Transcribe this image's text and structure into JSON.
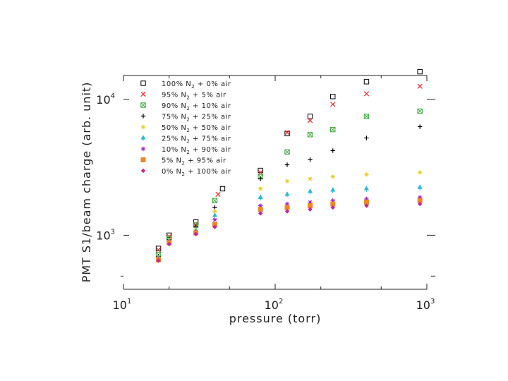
{
  "chart_data": {
    "type": "scatter",
    "xlabel": "pressure (torr)",
    "ylabel": "PMT S1/beam charge (arb. unit)",
    "xscale": "log",
    "yscale": "log",
    "xlim": [
      10,
      1000
    ],
    "ylim": [
      400,
      15000
    ],
    "x_ticks": [
      {
        "base": "10",
        "exp": "1",
        "value": 10
      },
      {
        "base": "10",
        "exp": "2",
        "value": 100
      },
      {
        "base": "10",
        "exp": "3",
        "value": 1000
      }
    ],
    "y_ticks": [
      {
        "base": "10",
        "exp": "3",
        "value": 1000
      },
      {
        "base": "10",
        "exp": "4",
        "value": 10000
      }
    ],
    "legend_position": "top-left",
    "series": [
      {
        "name": "100% N2 + 0% air",
        "legend_parts": [
          "100% N",
          "2",
          " + 0% air"
        ],
        "marker": "square-open",
        "color": "#000000",
        "points": [
          [
            17,
            800
          ],
          [
            20,
            1000
          ],
          [
            30,
            1250
          ],
          [
            45,
            2200
          ],
          [
            80,
            3000
          ],
          [
            120,
            5600
          ],
          [
            170,
            7500
          ],
          [
            240,
            10500
          ],
          [
            400,
            13500
          ],
          [
            900,
            16000
          ]
        ]
      },
      {
        "name": "95% N2 + 5% air",
        "legend_parts": [
          "95% N",
          "2",
          " + 5% air"
        ],
        "marker": "x",
        "color": "#ff2222",
        "points": [
          [
            17,
            780
          ],
          [
            20,
            980
          ],
          [
            30,
            1200
          ],
          [
            42,
            2000
          ],
          [
            80,
            2900
          ],
          [
            120,
            5700
          ],
          [
            170,
            7000
          ],
          [
            240,
            9200
          ],
          [
            400,
            11000
          ],
          [
            900,
            12500
          ]
        ]
      },
      {
        "name": "90% N2 + 10% air",
        "legend_parts": [
          "90% N",
          "2",
          " + 10% air"
        ],
        "marker": "square-cross",
        "color": "#33aa33",
        "points": [
          [
            17,
            720
          ],
          [
            20,
            950
          ],
          [
            30,
            1190
          ],
          [
            40,
            1800
          ],
          [
            80,
            2700
          ],
          [
            120,
            4100
          ],
          [
            170,
            5500
          ],
          [
            240,
            6000
          ],
          [
            400,
            7500
          ],
          [
            900,
            8200
          ]
        ]
      },
      {
        "name": "75% N2 + 25% air",
        "legend_parts": [
          "75% N",
          "2",
          " + 25% air"
        ],
        "marker": "plus",
        "color": "#000000",
        "points": [
          [
            17,
            700
          ],
          [
            20,
            930
          ],
          [
            30,
            1150
          ],
          [
            40,
            1600
          ],
          [
            80,
            2600
          ],
          [
            120,
            3300
          ],
          [
            170,
            3600
          ],
          [
            240,
            4200
          ],
          [
            400,
            5200
          ],
          [
            900,
            6300
          ]
        ]
      },
      {
        "name": "50% N2 + 50% air",
        "legend_parts": [
          "50% N",
          "2",
          " + 50% air"
        ],
        "marker": "star",
        "color": "#eecc22",
        "points": [
          [
            17,
            690
          ],
          [
            20,
            920
          ],
          [
            30,
            1100
          ],
          [
            40,
            1500
          ],
          [
            80,
            2200
          ],
          [
            120,
            2500
          ],
          [
            170,
            2600
          ],
          [
            240,
            2700
          ],
          [
            400,
            2800
          ],
          [
            900,
            2900
          ]
        ]
      },
      {
        "name": "25% N2 + 75% air",
        "legend_parts": [
          "25% N",
          "2",
          " + 75% air"
        ],
        "marker": "triangle-up",
        "color": "#22bbdd",
        "points": [
          [
            17,
            680
          ],
          [
            20,
            910
          ],
          [
            30,
            1080
          ],
          [
            40,
            1400
          ],
          [
            80,
            1900
          ],
          [
            120,
            2000
          ],
          [
            170,
            2100
          ],
          [
            240,
            2150
          ],
          [
            400,
            2200
          ],
          [
            900,
            2250
          ]
        ]
      },
      {
        "name": "10% N2 + 90% air",
        "legend_parts": [
          "10% N",
          "2",
          " + 90% air"
        ],
        "marker": "star",
        "color": "#aa22cc",
        "points": [
          [
            17,
            670
          ],
          [
            20,
            900
          ],
          [
            30,
            1060
          ],
          [
            40,
            1300
          ],
          [
            80,
            1650
          ],
          [
            120,
            1700
          ],
          [
            170,
            1750
          ],
          [
            240,
            1800
          ],
          [
            400,
            1850
          ],
          [
            900,
            1900
          ]
        ]
      },
      {
        "name": "5% N2 + 95% air",
        "legend_parts": [
          "5% N",
          "2",
          " + 95% air"
        ],
        "marker": "square-filled",
        "color": "#ee8822",
        "points": [
          [
            17,
            660
          ],
          [
            20,
            880
          ],
          [
            30,
            1040
          ],
          [
            40,
            1200
          ],
          [
            80,
            1550
          ],
          [
            120,
            1600
          ],
          [
            170,
            1650
          ],
          [
            240,
            1700
          ],
          [
            400,
            1750
          ],
          [
            900,
            1800
          ]
        ]
      },
      {
        "name": "0% N2 + 100% air",
        "legend_parts": [
          "0% N",
          "2",
          " + 100% air"
        ],
        "marker": "diamond",
        "color": "#cc2299",
        "points": [
          [
            17,
            650
          ],
          [
            20,
            860
          ],
          [
            30,
            1020
          ],
          [
            40,
            1150
          ],
          [
            80,
            1450
          ],
          [
            120,
            1500
          ],
          [
            170,
            1550
          ],
          [
            240,
            1600
          ],
          [
            400,
            1650
          ],
          [
            900,
            1700
          ]
        ]
      }
    ]
  }
}
